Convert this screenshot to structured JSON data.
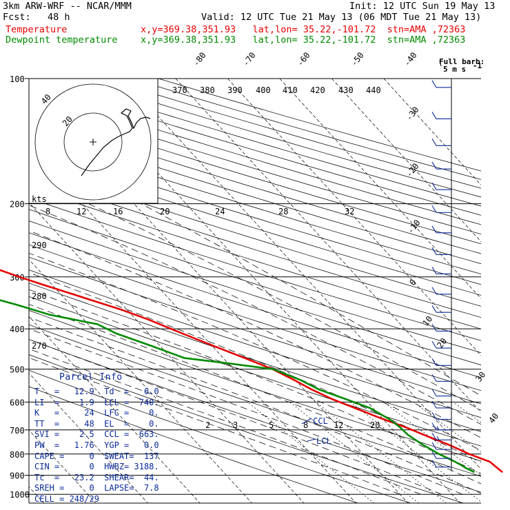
{
  "header": {
    "model": "3km ARW-WRF -- NCAR/MMM",
    "init": "Init: 12 UTC Sun 19 May 13",
    "fcst": "Fcst:   48 h",
    "valid": "Valid: 12 UTC Tue 21 May 13 (06 MDT Tue 21 May 13)",
    "temp_label": "Temperature",
    "dew_label": "Dewpoint temperature",
    "temp_info": "x,y=369.38,351.93   lat,lon= 35.22,-101.72  stn=AMA ,72363",
    "dew_info": "x,y=369.38,351.93   lat,lon= 35.22,-101.72  stn=AMA ,72363"
  },
  "barb_legend": {
    "title": "Full barb:",
    "value": "5 m s",
    "exponent": "-1"
  },
  "hodograph": {
    "units": "kts",
    "ring_labels": [
      "20",
      "40"
    ]
  },
  "parcel": {
    "title": "Parcel Info",
    "rows": [
      "T   =   12.9  Td  =   6.0",
      "LI  =    1.9  LCL =  740.",
      "K   =     24  LFC =    0.",
      "TT  =     48  EL  =    0.",
      "SVI =    2.5  CCL =  663.",
      "PW  =   1.76  YGP =   0.0",
      "CAPE =     0  SWEAT=  137",
      "CIN =      0  HWBZ= 3188.",
      "Tc  =   23.2  SHEAR=  44.",
      "SREH =     0  LAPSE=  7.8",
      "CELL = 248/29"
    ]
  },
  "chart_data": {
    "type": "skew-t log-p",
    "pressure_levels": [
      100,
      200,
      300,
      400,
      500,
      600,
      700,
      800,
      900,
      1000
    ],
    "isotherm_labels": [
      -80,
      -70,
      -60,
      -50,
      -40,
      -30,
      -20,
      -10,
      0,
      10,
      20,
      30,
      40
    ],
    "theta_labels": [
      370,
      380,
      390,
      400,
      410,
      420,
      430,
      440
    ],
    "theta_left_labels": [
      290,
      280,
      270
    ],
    "mixing_ratio_labels_upper": [
      8,
      12,
      16,
      20,
      24,
      28,
      32
    ],
    "mixing_ratio_labels_lower": [
      2,
      3,
      5,
      8,
      12,
      20
    ],
    "annotations": [
      "CCL",
      "LCL"
    ],
    "series": [
      {
        "name": "Temperature",
        "color": "#e60000",
        "points": [
          [
            885,
            13.6
          ],
          [
            860,
            13.3
          ],
          [
            835,
            13.0
          ],
          [
            800,
            10.4
          ],
          [
            760,
            8.1
          ],
          [
            720,
            5.1
          ],
          [
            690,
            2.9
          ],
          [
            655,
            -0.4
          ],
          [
            620,
            -3.5
          ],
          [
            590,
            -6.3
          ],
          [
            560,
            -8.5
          ],
          [
            530,
            -10.3
          ],
          [
            500,
            -12.5
          ],
          [
            470,
            -15.9
          ],
          [
            440,
            -19.7
          ],
          [
            410,
            -23.6
          ],
          [
            380,
            -27.6
          ],
          [
            360,
            -31.0
          ],
          [
            345,
            -34.3
          ],
          [
            330,
            -37.7
          ],
          [
            315,
            -41.3
          ],
          [
            300,
            -44.9
          ],
          [
            285,
            -48.3
          ],
          [
            270,
            -51.4
          ],
          [
            255,
            -54.5
          ],
          [
            240,
            -55.7
          ],
          [
            225,
            -57.1
          ],
          [
            210,
            -58.3
          ],
          [
            195,
            -59.3
          ],
          [
            180,
            -60.4
          ],
          [
            165,
            -61.6
          ],
          [
            150,
            -62.4
          ],
          [
            140,
            -63.2
          ],
          [
            130,
            -63.9
          ],
          [
            120,
            -64.3
          ],
          [
            113,
            -64.9
          ],
          [
            106,
            -65.4
          ],
          [
            100,
            -65.8
          ]
        ]
      },
      {
        "name": "Dewpoint temperature",
        "color": "#008a00",
        "points": [
          [
            885,
            8.2
          ],
          [
            865,
            7.3
          ],
          [
            850,
            6.9
          ],
          [
            830,
            6.1
          ],
          [
            800,
            4.6
          ],
          [
            760,
            3.1
          ],
          [
            720,
            2.0
          ],
          [
            690,
            1.8
          ],
          [
            660,
            1.2
          ],
          [
            620,
            -0.6
          ],
          [
            590,
            -3.7
          ],
          [
            560,
            -7.1
          ],
          [
            530,
            -9.1
          ],
          [
            500,
            -12.4
          ],
          [
            485,
            -19.5
          ],
          [
            470,
            -27.5
          ],
          [
            440,
            -31.6
          ],
          [
            410,
            -36.3
          ],
          [
            390,
            -38.2
          ],
          [
            370,
            -45.7
          ],
          [
            350,
            -50.3
          ],
          [
            335,
            -54.5
          ],
          [
            315,
            -57.0
          ],
          [
            295,
            -58.0
          ],
          [
            275,
            -58.9
          ],
          [
            255,
            -59.7
          ],
          [
            235,
            -61.1
          ],
          [
            215,
            -63.0
          ],
          [
            195,
            -64.1
          ],
          [
            175,
            -65.8
          ],
          [
            158,
            -67.2
          ],
          [
            145,
            -68.2
          ],
          [
            130,
            -69.3
          ],
          [
            118,
            -70.6
          ],
          [
            108,
            -72.3
          ],
          [
            100,
            -73.4
          ]
        ]
      }
    ],
    "wind_barbs": [
      {
        "p": 105,
        "speed_ms": 12
      },
      {
        "p": 125,
        "speed_ms": 12
      },
      {
        "p": 145,
        "speed_ms": 12
      },
      {
        "p": 165,
        "speed_ms": 12
      },
      {
        "p": 185,
        "speed_ms": 12
      },
      {
        "p": 210,
        "speed_ms": 12
      },
      {
        "p": 235,
        "speed_ms": 12
      },
      {
        "p": 265,
        "speed_ms": 12
      },
      {
        "p": 295,
        "speed_ms": 12
      },
      {
        "p": 330,
        "speed_ms": 12
      },
      {
        "p": 365,
        "speed_ms": 12
      },
      {
        "p": 405,
        "speed_ms": 12
      },
      {
        "p": 445,
        "speed_ms": 12
      },
      {
        "p": 490,
        "speed_ms": 10
      },
      {
        "p": 535,
        "speed_ms": 10
      },
      {
        "p": 580,
        "speed_ms": 10
      },
      {
        "p": 620,
        "speed_ms": 12
      },
      {
        "p": 660,
        "speed_ms": 12
      },
      {
        "p": 700,
        "speed_ms": 14
      },
      {
        "p": 740,
        "speed_ms": 14
      },
      {
        "p": 780,
        "speed_ms": 12
      },
      {
        "p": 820,
        "speed_ms": 10
      },
      {
        "p": 860,
        "speed_ms": 8
      }
    ]
  }
}
